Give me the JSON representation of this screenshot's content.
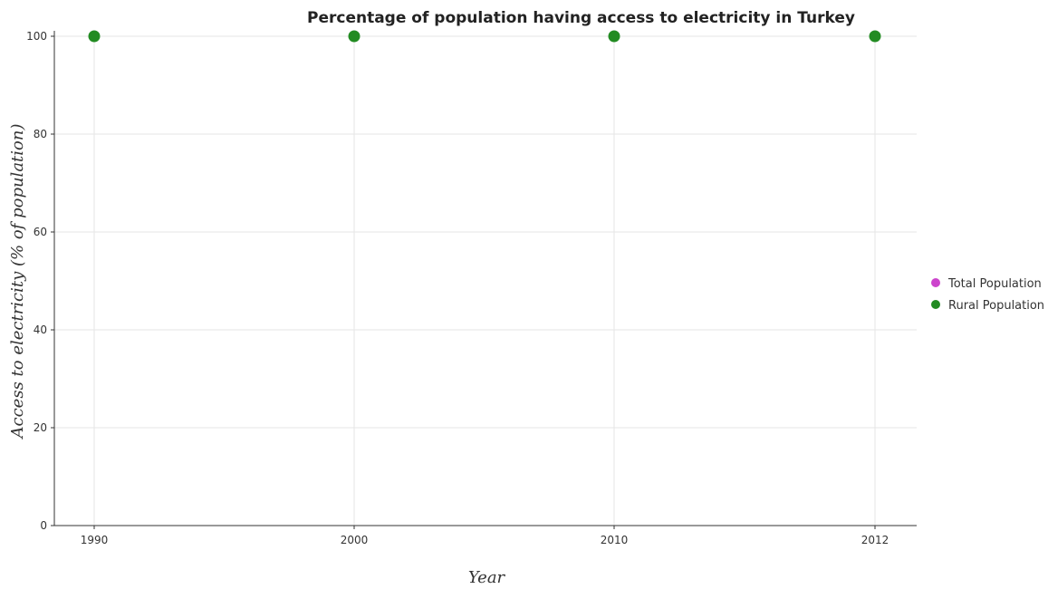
{
  "chart_data": {
    "type": "scatter",
    "title": "Percentage of population having access to electricity in Turkey",
    "xlabel": "Year",
    "ylabel": "Access to electricity (% of population)",
    "categories": [
      "1990",
      "2000",
      "2010",
      "2012"
    ],
    "y_ticks": [
      "0",
      "20",
      "40",
      "60",
      "80",
      "100"
    ],
    "ylim": [
      0,
      100
    ],
    "grid": true,
    "legend_placement": "right",
    "series": [
      {
        "name": "Total Population",
        "color": "#cc44cc",
        "values": [
          100,
          100,
          100,
          100
        ]
      },
      {
        "name": "Rural Population",
        "color": "#228b22",
        "values": [
          100,
          100,
          100,
          100
        ]
      }
    ]
  }
}
